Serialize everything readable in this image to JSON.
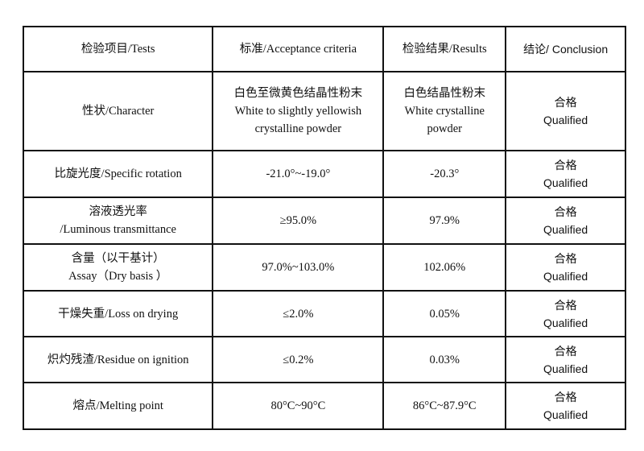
{
  "headers": [
    "检验项目/Tests",
    "标准/Acceptance criteria",
    "检验结果/Results",
    "结论/ Conclusion"
  ],
  "rows": [
    {
      "test": [
        "性状/Character"
      ],
      "criteria": [
        "白色至微黄色结晶性粉末",
        "White to slightly yellowish",
        "crystalline powder"
      ],
      "result": [
        "白色结晶性粉末",
        "White crystalline",
        "powder"
      ],
      "conclusion": [
        "合格",
        "Qualified"
      ]
    },
    {
      "test": [
        "比旋光度/Specific rotation"
      ],
      "criteria": [
        "-21.0°~-19.0°"
      ],
      "result": [
        "-20.3°"
      ],
      "conclusion": [
        "合格",
        "Qualified"
      ]
    },
    {
      "test": [
        "溶液透光率",
        "/Luminous transmittance"
      ],
      "criteria": [
        "≥95.0%"
      ],
      "result": [
        "97.9%"
      ],
      "conclusion": [
        "合格",
        "Qualified"
      ]
    },
    {
      "test": [
        "含量（以干基计）",
        "Assay（Dry basis ）"
      ],
      "criteria": [
        "97.0%~103.0%"
      ],
      "result": [
        "102.06%"
      ],
      "conclusion": [
        "合格",
        "Qualified"
      ]
    },
    {
      "test": [
        "干燥失重/Loss on drying"
      ],
      "criteria": [
        "≤2.0%"
      ],
      "result": [
        "0.05%"
      ],
      "conclusion": [
        "合格",
        "Qualified"
      ]
    },
    {
      "test": [
        "炽灼残渣/Residue on ignition"
      ],
      "criteria": [
        "≤0.2%"
      ],
      "result": [
        "0.03%"
      ],
      "conclusion": [
        "合格",
        "Qualified"
      ]
    },
    {
      "test": [
        "熔点/Melting point"
      ],
      "criteria": [
        "80°C~90°C"
      ],
      "result": [
        "86°C~87.9°C"
      ],
      "conclusion": [
        "合格",
        "Qualified"
      ]
    }
  ]
}
